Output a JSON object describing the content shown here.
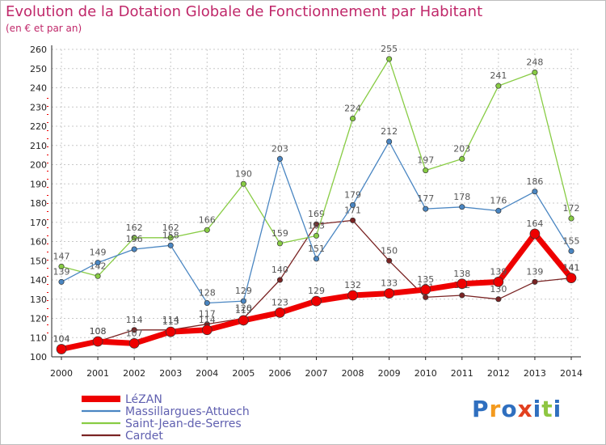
{
  "title": "Evolution de la Dotation Globale de Fonctionnement par Habitant",
  "subtitle": "(en € et par an)",
  "logo": {
    "text": "Proxiti",
    "colors": [
      "#2f6fbf",
      "#f39a1e",
      "#2f6fbf",
      "#e2401f",
      "#2f6fbf",
      "#8ec641",
      "#2f6fbf"
    ]
  },
  "colors": {
    "title": "#c0286a",
    "grid": "#c8c8c8",
    "axis": "#222222"
  },
  "chart_data": {
    "type": "line",
    "title": "Evolution de la Dotation Globale de Fonctionnement par Habitant",
    "subtitle": "(en € et par an)",
    "x": [
      "2000",
      "2001",
      "2002",
      "2003",
      "2004",
      "2005",
      "2006",
      "2007",
      "2008",
      "2009",
      "2010",
      "2011",
      "2012",
      "2013",
      "2014"
    ],
    "ylim": [
      100,
      260
    ],
    "yticks": [
      100,
      110,
      120,
      130,
      140,
      150,
      160,
      170,
      180,
      190,
      200,
      210,
      220,
      230,
      240,
      250,
      260
    ],
    "grid": true,
    "legend_position": "bottom-left",
    "series": [
      {
        "name": "Cardet",
        "color": "#7a2424",
        "width": 1.3,
        "marker": 3.2,
        "values": [
          104,
          108,
          114,
          114,
          117,
          120,
          140,
          169,
          171,
          150,
          131,
          132,
          130,
          139,
          141
        ]
      },
      {
        "name": "Saint-Jean-de-Serres",
        "color": "#88cc44",
        "width": 1.3,
        "marker": 3.2,
        "values": [
          147,
          142,
          162,
          162,
          166,
          190,
          159,
          163,
          224,
          255,
          197,
          203,
          241,
          248,
          172
        ]
      },
      {
        "name": "Massillargues-Attuech",
        "color": "#4a86c2",
        "width": 1.3,
        "marker": 3.2,
        "values": [
          139,
          149,
          156,
          158,
          128,
          129,
          203,
          151,
          179,
          212,
          177,
          178,
          176,
          186,
          155
        ]
      },
      {
        "name": "LéZAN",
        "color": "#ee0000",
        "width": 7,
        "marker": 6,
        "values": [
          104,
          108,
          107,
          113,
          114,
          119,
          123,
          129,
          132,
          133,
          135,
          138,
          139,
          164,
          141
        ]
      }
    ]
  }
}
